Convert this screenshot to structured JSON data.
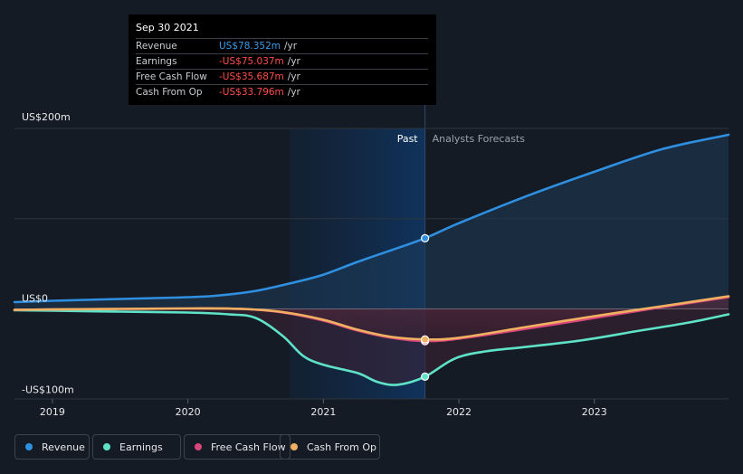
{
  "tooltip": {
    "date": "Sep 30 2021",
    "rows": [
      {
        "label": "Revenue",
        "value": "US$78.352m",
        "unit": "/yr",
        "color": "#3b9be7"
      },
      {
        "label": "Earnings",
        "value": "-US$75.037m",
        "unit": "/yr",
        "color": "#ff4d4d"
      },
      {
        "label": "Free Cash Flow",
        "value": "-US$35.687m",
        "unit": "/yr",
        "color": "#ff4d4d"
      },
      {
        "label": "Cash From Op",
        "value": "-US$33.796m",
        "unit": "/yr",
        "color": "#ff4d4d"
      }
    ]
  },
  "labels": {
    "past": "Past",
    "forecast": "Analysts Forecasts"
  },
  "legend": [
    {
      "label": "Revenue",
      "color": "#2f8fe0"
    },
    {
      "label": "Earnings",
      "color": "#5fe3c8"
    },
    {
      "label": "Free Cash Flow",
      "color": "#d9467a"
    },
    {
      "label": "Cash From Op",
      "color": "#f0b062"
    }
  ],
  "chart_data": {
    "type": "line",
    "x_ticks": [
      "2019",
      "2020",
      "2021",
      "2022",
      "2023"
    ],
    "y_ticks": [
      {
        "value": 200,
        "label": "US$200m"
      },
      {
        "value": 0,
        "label": "US$0"
      },
      {
        "value": -100,
        "label": "-US$100m"
      }
    ],
    "ylim": [
      -100,
      200
    ],
    "xlim": [
      2018.72,
      2023.99
    ],
    "past_start": 2020.75,
    "split": 2021.75,
    "series": [
      {
        "name": "Revenue",
        "color": "#2f8fe0",
        "points": [
          [
            2018.72,
            7.5
          ],
          [
            2019.0,
            9
          ],
          [
            2019.5,
            11
          ],
          [
            2019.9,
            12.5
          ],
          [
            2020.2,
            14.5
          ],
          [
            2020.5,
            20
          ],
          [
            2020.8,
            30
          ],
          [
            2021.0,
            38
          ],
          [
            2021.25,
            52
          ],
          [
            2021.5,
            65
          ],
          [
            2021.75,
            78.35
          ],
          [
            2022.0,
            95
          ],
          [
            2022.5,
            125
          ],
          [
            2023.0,
            152
          ],
          [
            2023.5,
            177
          ],
          [
            2023.99,
            193
          ]
        ]
      },
      {
        "name": "Earnings",
        "color": "#5fe3c8",
        "points": [
          [
            2018.72,
            -1.5
          ],
          [
            2019.0,
            -2
          ],
          [
            2019.5,
            -3
          ],
          [
            2020.0,
            -4
          ],
          [
            2020.3,
            -6
          ],
          [
            2020.5,
            -10
          ],
          [
            2020.7,
            -30
          ],
          [
            2020.85,
            -52
          ],
          [
            2021.0,
            -62
          ],
          [
            2021.25,
            -71
          ],
          [
            2021.4,
            -81
          ],
          [
            2021.55,
            -84
          ],
          [
            2021.75,
            -75.04
          ],
          [
            2021.97,
            -55
          ],
          [
            2022.2,
            -47
          ],
          [
            2022.5,
            -42
          ],
          [
            2022.9,
            -35
          ],
          [
            2023.3,
            -25
          ],
          [
            2023.7,
            -15
          ],
          [
            2023.99,
            -6
          ]
        ]
      },
      {
        "name": "Free Cash Flow",
        "color": "#d9467a",
        "points": [
          [
            2018.72,
            -1
          ],
          [
            2019.0,
            -0.5
          ],
          [
            2019.5,
            0
          ],
          [
            2020.0,
            0.5
          ],
          [
            2020.4,
            0
          ],
          [
            2020.7,
            -4
          ],
          [
            2021.0,
            -13
          ],
          [
            2021.25,
            -24
          ],
          [
            2021.5,
            -32
          ],
          [
            2021.75,
            -35.69
          ],
          [
            2022.0,
            -33
          ],
          [
            2022.5,
            -22
          ],
          [
            2023.0,
            -10
          ],
          [
            2023.5,
            2
          ],
          [
            2023.99,
            13
          ]
        ]
      },
      {
        "name": "Cash From Op",
        "color": "#f0b062",
        "points": [
          [
            2018.72,
            -1
          ],
          [
            2019.0,
            -0.5
          ],
          [
            2019.5,
            0
          ],
          [
            2020.0,
            0.5
          ],
          [
            2020.4,
            0
          ],
          [
            2020.7,
            -3.5
          ],
          [
            2021.0,
            -12
          ],
          [
            2021.25,
            -23
          ],
          [
            2021.5,
            -31
          ],
          [
            2021.75,
            -33.8
          ],
          [
            2022.0,
            -32
          ],
          [
            2022.5,
            -20
          ],
          [
            2023.0,
            -8
          ],
          [
            2023.5,
            3
          ],
          [
            2023.99,
            14
          ]
        ]
      }
    ]
  }
}
